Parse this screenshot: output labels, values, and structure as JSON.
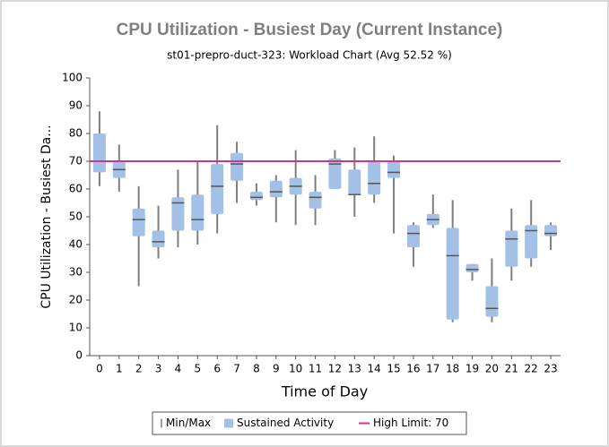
{
  "chart_data": {
    "type": "box",
    "title": "CPU Utilization - Busiest Day (Current Instance)",
    "subtitle": "st01-prepro-duct-323: Workload Chart (Avg 52.52 %)",
    "x_label": "Time of Day",
    "y_label": "CPU Utilization - Busiest Da...",
    "categories": [
      "0",
      "1",
      "2",
      "3",
      "4",
      "5",
      "6",
      "7",
      "8",
      "9",
      "10",
      "11",
      "12",
      "13",
      "14",
      "15",
      "16",
      "17",
      "18",
      "19",
      "20",
      "21",
      "22",
      "23"
    ],
    "series": [
      {
        "name": "Sustained Activity",
        "color": "#a3c1e6",
        "whisker_name": "Min/Max",
        "whisker_color": "#7f7f7f",
        "median_color": "#555555",
        "min": [
          61,
          59,
          25,
          35,
          39,
          40,
          44,
          55,
          54,
          48,
          47,
          47,
          60,
          50,
          55,
          44,
          32,
          46,
          12,
          27,
          12,
          27,
          32,
          38
        ],
        "q1": [
          66,
          64,
          43,
          39,
          45,
          45,
          51,
          63,
          56,
          57,
          58,
          53,
          60,
          58,
          58,
          64,
          39,
          47,
          13,
          30,
          14,
          32,
          35,
          43
        ],
        "median": [
          70,
          67,
          49,
          41,
          55,
          49,
          61,
          69,
          57,
          59,
          61,
          57,
          69,
          58,
          62,
          66,
          44,
          49,
          36,
          31,
          17,
          42,
          45,
          44
        ],
        "q3": [
          80,
          70,
          53,
          45,
          57,
          58,
          69,
          73,
          59,
          63,
          64,
          59,
          71,
          67,
          70,
          70,
          47,
          51,
          46,
          33,
          25,
          45,
          47,
          47
        ],
        "max": [
          88,
          76,
          61,
          54,
          67,
          70,
          83,
          77,
          62,
          65,
          74,
          65,
          74,
          75,
          79,
          72,
          48,
          58,
          56,
          33,
          35,
          53,
          56,
          48
        ]
      }
    ],
    "limit": {
      "name": "High Limit: 70",
      "value": 70,
      "color": "#c8368e"
    },
    "ylim": [
      0,
      100
    ],
    "yticks": [
      0,
      10,
      20,
      30,
      40,
      50,
      60,
      70,
      80,
      90,
      100
    ],
    "grid": false
  }
}
